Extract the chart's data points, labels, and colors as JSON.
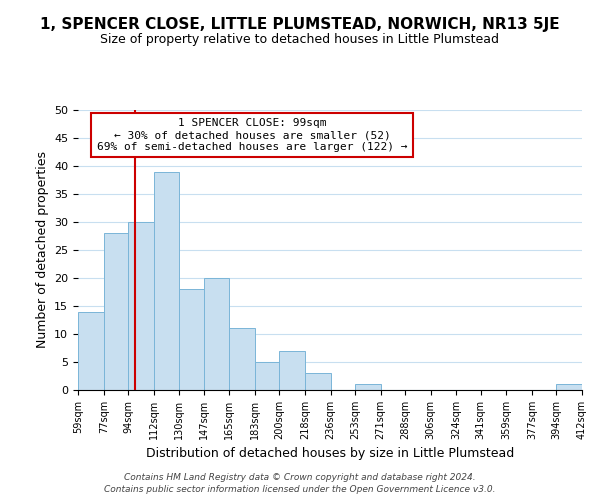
{
  "title": "1, SPENCER CLOSE, LITTLE PLUMSTEAD, NORWICH, NR13 5JE",
  "subtitle": "Size of property relative to detached houses in Little Plumstead",
  "xlabel": "Distribution of detached houses by size in Little Plumstead",
  "ylabel": "Number of detached properties",
  "bin_labels": [
    "59sqm",
    "77sqm",
    "94sqm",
    "112sqm",
    "130sqm",
    "147sqm",
    "165sqm",
    "183sqm",
    "200sqm",
    "218sqm",
    "236sqm",
    "253sqm",
    "271sqm",
    "288sqm",
    "306sqm",
    "324sqm",
    "341sqm",
    "359sqm",
    "377sqm",
    "394sqm",
    "412sqm"
  ],
  "bin_edges": [
    59,
    77,
    94,
    112,
    130,
    147,
    165,
    183,
    200,
    218,
    236,
    253,
    271,
    288,
    306,
    324,
    341,
    359,
    377,
    394,
    412
  ],
  "counts": [
    14,
    28,
    30,
    39,
    18,
    20,
    11,
    5,
    7,
    3,
    0,
    1,
    0,
    0,
    0,
    0,
    0,
    0,
    0,
    1
  ],
  "bar_color": "#c8dff0",
  "bar_edge_color": "#7ab5d8",
  "grid_color": "#c8dff0",
  "property_line_x": 99,
  "property_line_color": "#cc0000",
  "annotation_title": "1 SPENCER CLOSE: 99sqm",
  "annotation_line1": "← 30% of detached houses are smaller (52)",
  "annotation_line2": "69% of semi-detached houses are larger (122) →",
  "annotation_box_color": "#ffffff",
  "annotation_box_edge": "#cc0000",
  "ylim": [
    0,
    50
  ],
  "yticks": [
    0,
    5,
    10,
    15,
    20,
    25,
    30,
    35,
    40,
    45,
    50
  ],
  "footer1": "Contains HM Land Registry data © Crown copyright and database right 2024.",
  "footer2": "Contains public sector information licensed under the Open Government Licence v3.0."
}
